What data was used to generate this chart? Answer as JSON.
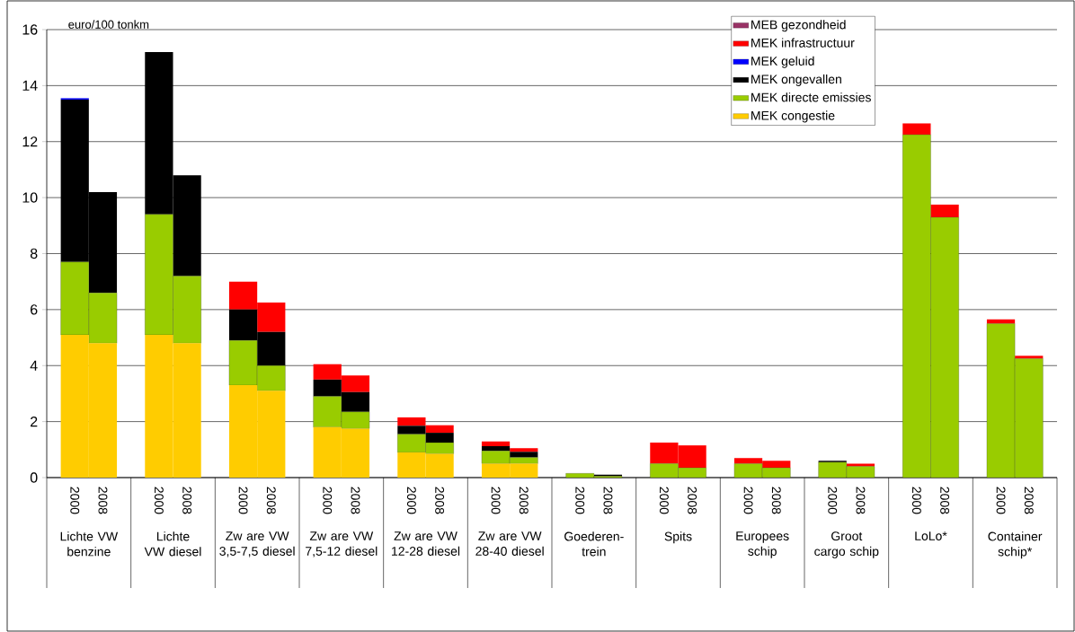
{
  "chart_data": {
    "type": "bar",
    "stacked": true,
    "ylabel": "euro/100 tonkm",
    "categories": [
      "2000",
      "2008",
      "2000",
      "2008",
      "2000",
      "2008",
      "2000",
      "2008",
      "2000",
      "2008",
      "2000",
      "2008",
      "2000",
      "2008",
      "2000",
      "2008",
      "2000",
      "2008",
      "2000",
      "2008",
      "2000",
      "2008",
      "2000",
      "2008"
    ],
    "annotations": [
      "Lichte VW benzine",
      "Lichte VW diesel",
      "Zw are VW 3,5-7,5 diesel",
      "Zw are VW 7,5-12 diesel",
      "Zw are VW 12-28 diesel",
      "Zw are VW 28-40 diesel",
      "Goederen- trein",
      "Spits",
      "Europees schip",
      "Groot cargo schip",
      "LoLo*",
      "Container schip*"
    ],
    "series": [
      {
        "name": "MEK congestie",
        "color": "#ffcc00",
        "values": [
          5.1,
          4.8,
          5.1,
          4.8,
          3.3,
          3.1,
          1.8,
          1.75,
          0.9,
          0.85,
          0.5,
          0.5,
          0,
          0,
          0,
          0,
          0,
          0,
          0,
          0,
          0,
          0,
          0,
          0
        ]
      },
      {
        "name": "MEK directe emissies",
        "color": "#99cc00",
        "values": [
          2.6,
          1.8,
          4.3,
          2.4,
          1.6,
          0.9,
          1.1,
          0.6,
          0.65,
          0.4,
          0.45,
          0.22,
          0.15,
          0.05,
          0.5,
          0.35,
          0.5,
          0.35,
          0.55,
          0.4,
          12.25,
          9.3,
          5.5,
          4.25
        ]
      },
      {
        "name": "MEK ongevallen",
        "color": "#000000",
        "values": [
          5.8,
          3.6,
          5.8,
          3.6,
          1.1,
          1.2,
          0.6,
          0.7,
          0.3,
          0.35,
          0.17,
          0.2,
          0,
          0.05,
          0,
          0,
          0,
          0,
          0.05,
          0,
          0,
          0,
          0,
          0
        ]
      },
      {
        "name": "MEK geluid",
        "color": "#0000ff",
        "values": [
          0.05,
          0,
          0,
          0,
          0,
          0,
          0,
          0,
          0,
          0,
          0,
          0,
          0,
          0,
          0,
          0,
          0,
          0,
          0,
          0,
          0,
          0,
          0,
          0
        ]
      },
      {
        "name": "MEK infrastructuur",
        "color": "#ff0000",
        "values": [
          0,
          0,
          0,
          0,
          1.0,
          1.05,
          0.55,
          0.6,
          0.3,
          0.27,
          0.17,
          0.13,
          0,
          0,
          0.75,
          0.8,
          0.2,
          0.25,
          0,
          0.1,
          0.4,
          0.45,
          0.15,
          0.1
        ]
      },
      {
        "name": "MEB gezondheid",
        "color": "#993366",
        "values": [
          0,
          0,
          0,
          0,
          0,
          0,
          0,
          0,
          0,
          0,
          0,
          0,
          0,
          0,
          0,
          0,
          0,
          0,
          0,
          0,
          0,
          0,
          0,
          0
        ]
      }
    ],
    "ylim": [
      0,
      16
    ],
    "yticks": [
      0,
      2,
      4,
      6,
      8,
      10,
      12,
      14,
      16
    ],
    "grid": "y",
    "legend": "top right"
  }
}
